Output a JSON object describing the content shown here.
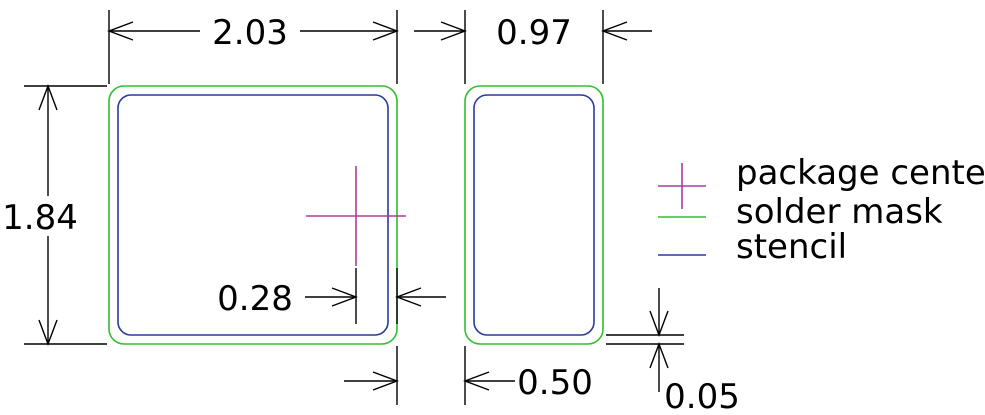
{
  "diagram": {
    "dimensions": {
      "pad1_width": "2.03",
      "pad2_width": "0.97",
      "pad_height": "1.84",
      "center_offset": "0.28",
      "pad_gap": "0.50",
      "mask_expansion": "0.05"
    },
    "legend": {
      "items": [
        {
          "label": "package center",
          "color": "#b03a9e"
        },
        {
          "label": "solder mask",
          "color": "#2ec02e"
        },
        {
          "label": "stencil",
          "color": "#2a3a9e"
        }
      ]
    },
    "colors": {
      "mask": "#2ec02e",
      "stencil": "#2a3a9e",
      "center": "#b03a9e",
      "dimension": "#000000"
    }
  }
}
